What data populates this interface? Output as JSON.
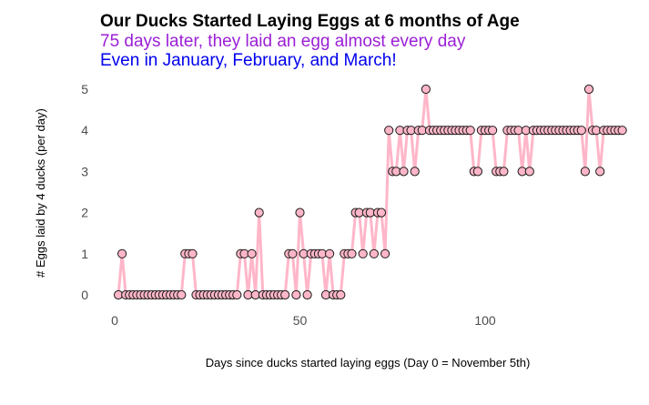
{
  "chart_data": {
    "type": "line",
    "title": "Our Ducks Started Laying Eggs at 6 months of Age",
    "subtitle_1": "75 days later, they laid an egg almost every day",
    "subtitle_2": "Even in January, February, and March!",
    "xlabel": "Days since ducks started laying eggs (Day 0 = November 5th)",
    "ylabel": "# Eggs laid by 4 ducks (per day)",
    "xlim": [
      -4,
      138
    ],
    "ylim": [
      0,
      5
    ],
    "x_ticks": [
      0,
      50,
      100
    ],
    "y_ticks": [
      0,
      1,
      2,
      3,
      4,
      5
    ],
    "grid": false,
    "series": [
      {
        "x_start": 1,
        "values": [
          0,
          1,
          0,
          0,
          0,
          0,
          0,
          0,
          0,
          0,
          0,
          0,
          0,
          0,
          0,
          0,
          0,
          0,
          1,
          1,
          1,
          0,
          0,
          0,
          0,
          0,
          0,
          0,
          0,
          0,
          0,
          0,
          0,
          1,
          1,
          0,
          1,
          0,
          2,
          0,
          0,
          0,
          0,
          0,
          0,
          0,
          1,
          1,
          0,
          2,
          1,
          0,
          1,
          1,
          1,
          1,
          0,
          1,
          0,
          0,
          0,
          1,
          1,
          1,
          2,
          2,
          1,
          2,
          2,
          1,
          2,
          2,
          1,
          4,
          3,
          3,
          4,
          3,
          4,
          4,
          3,
          4,
          4,
          5,
          4,
          4,
          4,
          4,
          4,
          4,
          4,
          4,
          4,
          4,
          4,
          4,
          3,
          3,
          4,
          4,
          4,
          4,
          3,
          3,
          3,
          4,
          4,
          4,
          4,
          3,
          4,
          3,
          4,
          4,
          4,
          4,
          4,
          4,
          4,
          4,
          4,
          4,
          4,
          4,
          4,
          4,
          3,
          5,
          4,
          4,
          3,
          4,
          4,
          4,
          4,
          4,
          4
        ],
        "line_color": "#ffb6c8",
        "marker_fill": "#ffb6c8",
        "marker_stroke": "#1a1a1a"
      }
    ],
    "colors": {
      "title": "#000000",
      "subtitle_1": "#9b1fd6",
      "subtitle_2": "#0000ee"
    }
  }
}
